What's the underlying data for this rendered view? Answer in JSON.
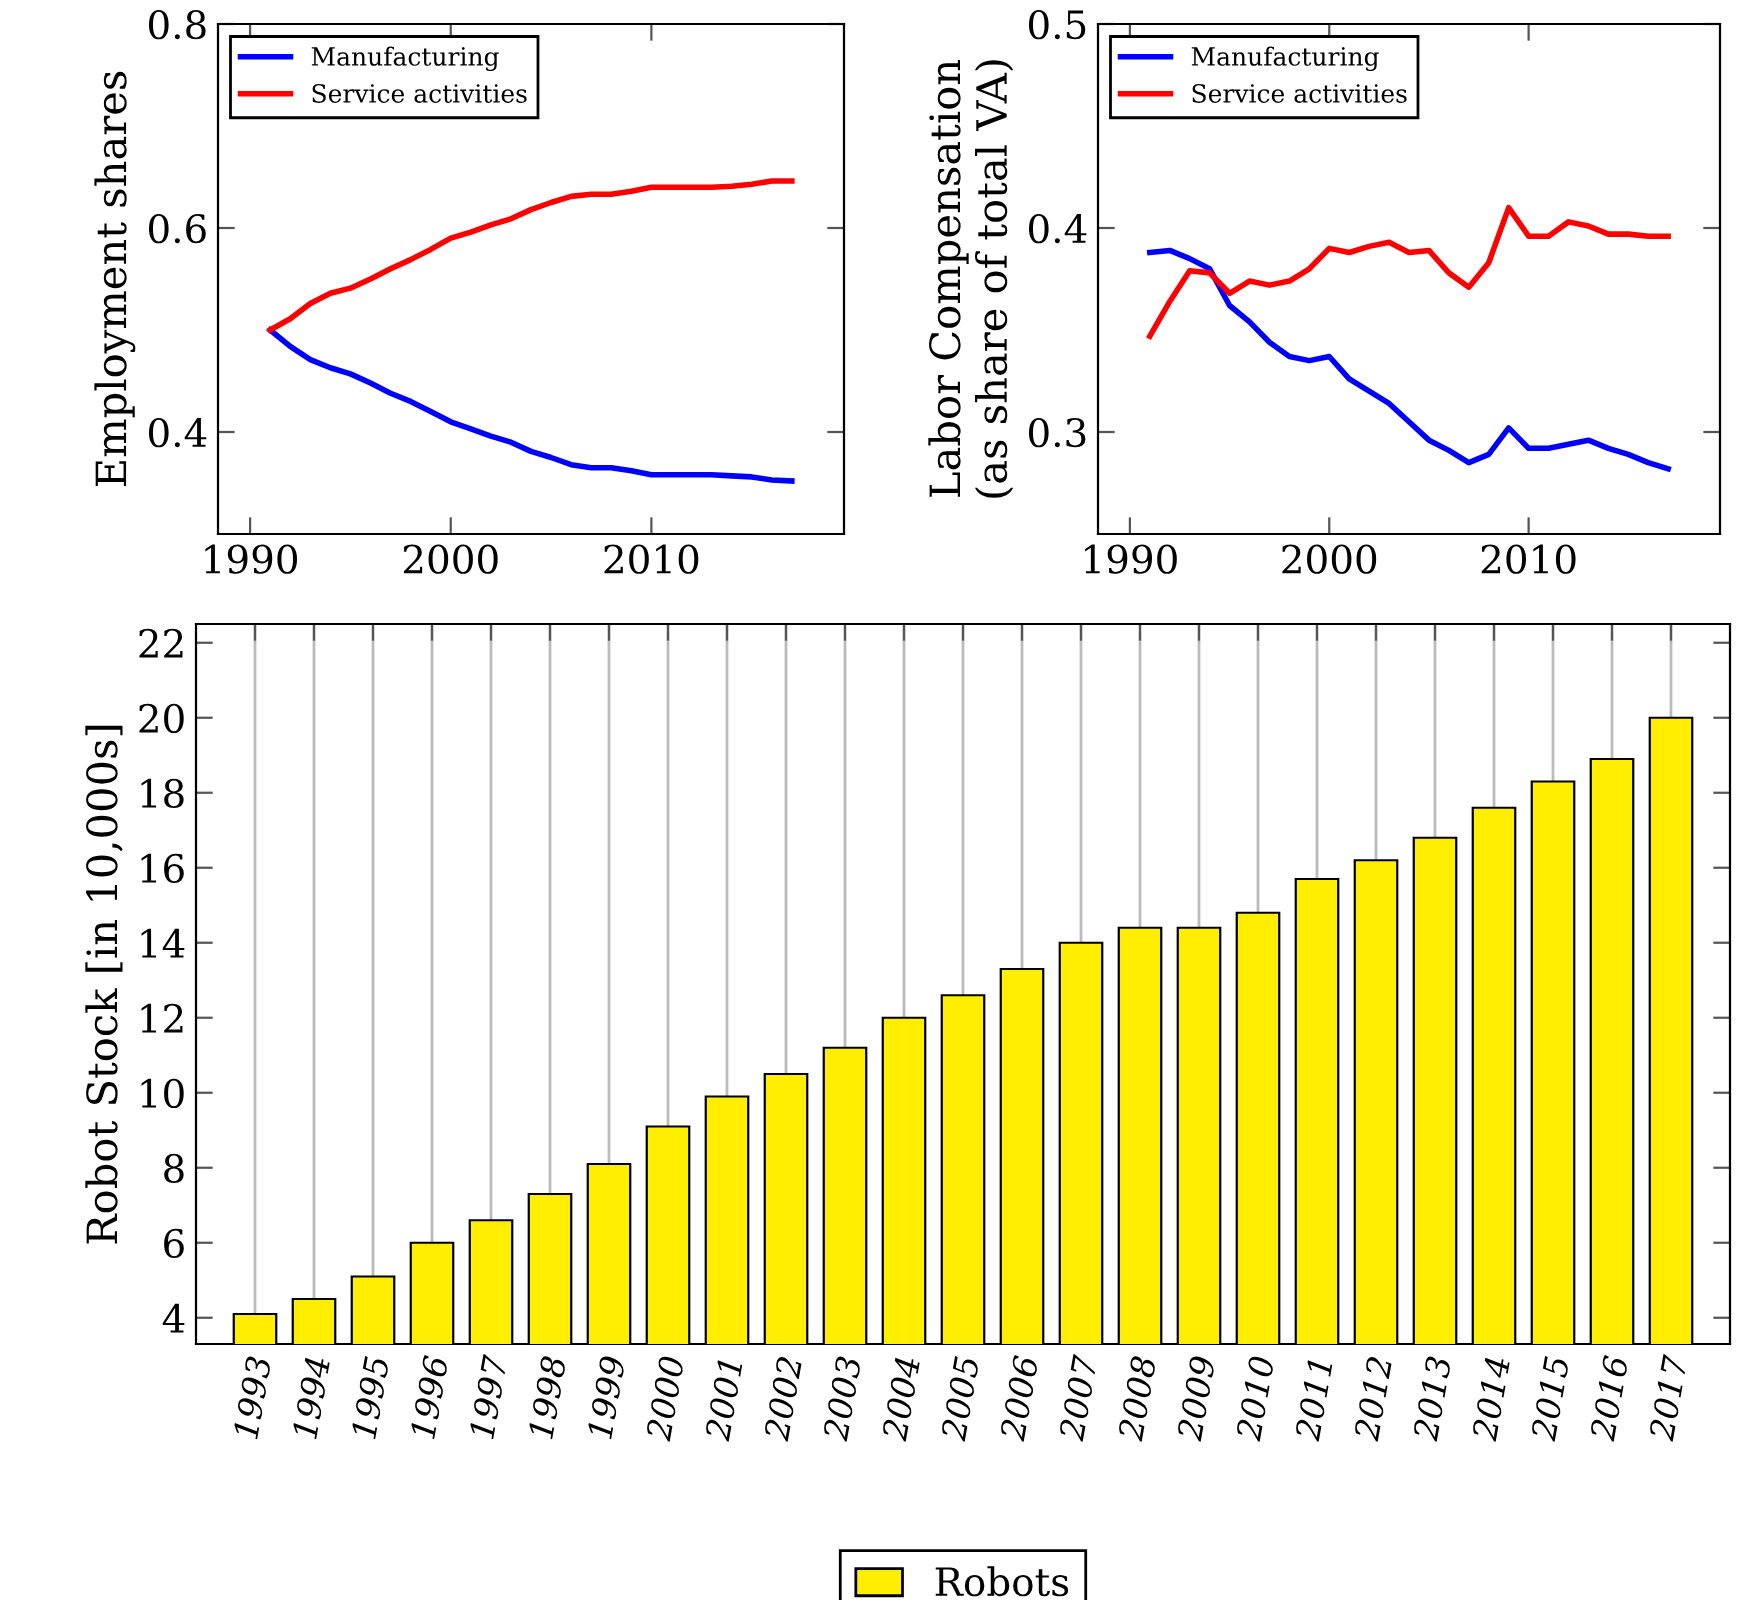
{
  "chart_data": [
    {
      "type": "line",
      "ylabel": "Employment shares",
      "x": [
        1991,
        1992,
        1993,
        1994,
        1995,
        1996,
        1997,
        1998,
        1999,
        2000,
        2001,
        2002,
        2003,
        2004,
        2005,
        2006,
        2007,
        2008,
        2009,
        2010,
        2011,
        2012,
        2013,
        2014,
        2015,
        2016,
        2017
      ],
      "series": [
        {
          "name": "Manufacturing",
          "color": "#0000ff",
          "values": [
            0.5,
            0.484,
            0.471,
            0.463,
            0.457,
            0.448,
            0.438,
            0.43,
            0.42,
            0.41,
            0.403,
            0.396,
            0.39,
            0.381,
            0.375,
            0.368,
            0.365,
            0.365,
            0.362,
            0.358,
            0.358,
            0.358,
            0.358,
            0.357,
            0.356,
            0.353,
            0.352
          ]
        },
        {
          "name": "Service activities",
          "color": "#ff0000",
          "values": [
            0.5,
            0.511,
            0.526,
            0.536,
            0.541,
            0.55,
            0.56,
            0.569,
            0.579,
            0.59,
            0.596,
            0.603,
            0.609,
            0.618,
            0.625,
            0.631,
            0.633,
            0.633,
            0.636,
            0.64,
            0.64,
            0.64,
            0.64,
            0.641,
            0.643,
            0.646,
            0.646
          ]
        }
      ],
      "xlim": [
        1988.4,
        2019.6
      ],
      "xticks": [
        1990,
        2000,
        2010
      ],
      "ylim": [
        0.3,
        0.8
      ],
      "yticks": [
        0.4,
        0.6,
        0.8
      ],
      "legend": "top left",
      "grid": false
    },
    {
      "type": "line",
      "ylabel": "Labor Compensation\n(as share of total VA)",
      "x": [
        1991,
        1992,
        1993,
        1994,
        1995,
        1996,
        1997,
        1998,
        1999,
        2000,
        2001,
        2002,
        2003,
        2004,
        2005,
        2006,
        2007,
        2008,
        2009,
        2010,
        2011,
        2012,
        2013,
        2014,
        2015,
        2016,
        2017
      ],
      "series": [
        {
          "name": "Manufacturing",
          "color": "#0000ff",
          "values": [
            0.388,
            0.389,
            0.385,
            0.38,
            0.362,
            0.354,
            0.344,
            0.337,
            0.335,
            0.337,
            0.326,
            0.32,
            0.314,
            0.305,
            0.296,
            0.291,
            0.285,
            0.289,
            0.302,
            0.292,
            0.292,
            0.294,
            0.296,
            0.292,
            0.289,
            0.285,
            0.282
          ]
        },
        {
          "name": "Service activities",
          "color": "#ff0000",
          "values": [
            0.347,
            0.364,
            0.379,
            0.378,
            0.368,
            0.374,
            0.372,
            0.374,
            0.38,
            0.39,
            0.388,
            0.391,
            0.393,
            0.388,
            0.389,
            0.378,
            0.371,
            0.383,
            0.41,
            0.396,
            0.396,
            0.403,
            0.401,
            0.397,
            0.397,
            0.396,
            0.396
          ]
        }
      ],
      "xlim": [
        1988.4,
        2019.6
      ],
      "xticks": [
        1990,
        2000,
        2010
      ],
      "ylim": [
        0.25,
        0.5
      ],
      "yticks": [
        0.3,
        0.4,
        0.5
      ],
      "legend": "top left",
      "grid": false
    },
    {
      "type": "bar",
      "ylabel": "Robot Stock [in 10,000s]",
      "categories": [
        "1993",
        "1994",
        "1995",
        "1996",
        "1997",
        "1998",
        "1999",
        "2000",
        "2001",
        "2002",
        "2003",
        "2004",
        "2005",
        "2006",
        "2007",
        "2008",
        "2009",
        "2010",
        "2011",
        "2012",
        "2013",
        "2014",
        "2015",
        "2016",
        "2017"
      ],
      "series": [
        {
          "name": "Robots",
          "color": "#ffee00",
          "values": [
            4.1,
            4.5,
            5.1,
            6.0,
            6.6,
            7.3,
            8.1,
            9.1,
            9.9,
            10.5,
            11.2,
            12.0,
            12.6,
            13.3,
            14.0,
            14.4,
            14.4,
            14.8,
            15.7,
            16.2,
            16.8,
            17.6,
            18.3,
            18.9,
            20.0
          ]
        }
      ],
      "ylim": [
        3.3,
        22.5
      ],
      "yticks": [
        4,
        6,
        8,
        10,
        12,
        14,
        16,
        18,
        20,
        22
      ],
      "legend": "bottom",
      "grid": "x"
    }
  ]
}
